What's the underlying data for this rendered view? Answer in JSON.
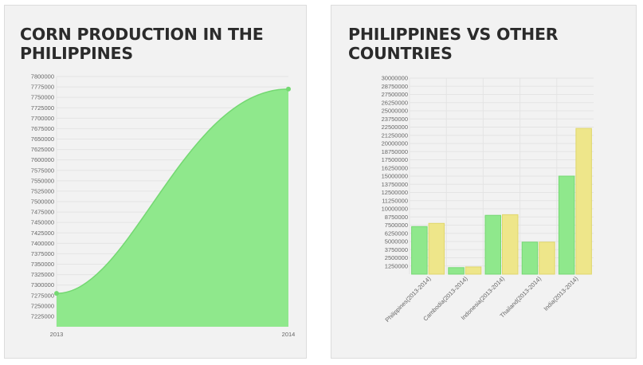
{
  "colors": {
    "green_fill": "#8fe88c",
    "green_line": "#74d872",
    "yellow_fill": "#eee68a",
    "yellow_line": "#e0d76c",
    "panel_bg": "#f2f2f2",
    "grid": "#e4e4e4"
  },
  "panels": [
    {
      "title": "CORN PRODUCTION IN THE\nPHILIPPINES"
    },
    {
      "title": "PHILIPPINES VS OTHER\nCOUNTRIES"
    }
  ],
  "chart_data": [
    {
      "type": "area",
      "title": "CORN PRODUCTION IN THE PHILIPPINES",
      "x": [
        "2013",
        "2014"
      ],
      "values": [
        7280000,
        7770000
      ],
      "ylim": [
        7200000,
        7800000
      ],
      "yticks": [
        7225000,
        7250000,
        7275000,
        7300000,
        7325000,
        7350000,
        7375000,
        7400000,
        7425000,
        7450000,
        7475000,
        7500000,
        7525000,
        7550000,
        7575000,
        7600000,
        7625000,
        7650000,
        7675000,
        7700000,
        7725000,
        7750000,
        7775000,
        7800000
      ],
      "grid": true,
      "legend": "none"
    },
    {
      "type": "bar",
      "title": "PHILIPPINES VS OTHER COUNTRIES",
      "categories": [
        "Philippines(2013-2014)",
        "Cambodia(2013-2014)",
        "Indonesia(2013-2014)",
        "Thailand(2013-2014)",
        "India(2013-2014)"
      ],
      "series": [
        {
          "values": [
            7280000,
            1000000,
            9000000,
            4900000,
            15000000
          ]
        },
        {
          "values": [
            7770000,
            1100000,
            9100000,
            4900000,
            22300000
          ]
        }
      ],
      "ylim": [
        0,
        30000000
      ],
      "yticks": [
        1250000,
        2500000,
        3750000,
        5000000,
        6250000,
        7500000,
        8750000,
        10000000,
        11250000,
        12500000,
        13750000,
        15000000,
        16250000,
        17500000,
        18750000,
        20000000,
        21250000,
        22500000,
        23750000,
        25000000,
        26250000,
        27500000,
        28750000,
        30000000
      ],
      "grid": true,
      "legend": "none"
    }
  ]
}
